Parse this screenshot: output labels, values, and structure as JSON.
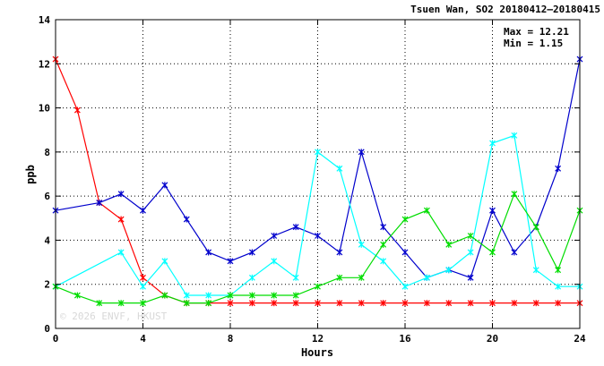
{
  "chart_data": {
    "type": "line",
    "title": "Tsuen Wan, SO2 20180412–20180415",
    "xlabel": "Hours",
    "ylabel": "ppb",
    "xlim": [
      0,
      24
    ],
    "ylim": [
      0,
      14
    ],
    "x_ticks": [
      "0",
      "4",
      "8",
      "12",
      "16",
      "20",
      "24"
    ],
    "y_ticks": [
      "0",
      "2",
      "4",
      "6",
      "8",
      "10",
      "12",
      "14"
    ],
    "grid": true,
    "stats": {
      "max": "Max = 12.21",
      "min": "Min =  1.15"
    },
    "watermark": "© 2026  ENVF, HKUST",
    "series": [
      {
        "color": "#ff0000",
        "x": [
          0,
          1,
          2,
          3,
          4,
          5,
          6,
          7,
          8,
          9,
          10,
          11,
          12,
          13,
          14,
          15,
          16,
          17,
          18,
          19,
          20,
          21,
          22,
          23,
          24
        ],
        "values": [
          12.21,
          9.9,
          5.7,
          4.95,
          2.3,
          1.5,
          1.15,
          1.15,
          1.15,
          1.15,
          1.15,
          1.15,
          1.15,
          1.15,
          1.15,
          1.15,
          1.15,
          1.15,
          1.15,
          1.15,
          1.15,
          1.15,
          1.15,
          1.15,
          1.15
        ]
      },
      {
        "color": "#0000cc",
        "x": [
          0,
          2,
          3,
          4,
          5,
          6,
          7,
          8,
          9,
          10,
          11,
          12,
          13,
          14,
          15,
          16,
          17,
          18,
          19,
          20,
          21,
          22,
          23,
          24
        ],
        "values": [
          5.35,
          5.7,
          6.1,
          5.35,
          6.5,
          4.95,
          3.45,
          3.05,
          3.45,
          4.2,
          4.6,
          4.2,
          3.45,
          8.0,
          4.6,
          3.45,
          2.3,
          2.65,
          2.3,
          5.35,
          3.45,
          4.6,
          7.25,
          12.21
        ]
      },
      {
        "color": "#00ffff",
        "x": [
          0,
          3,
          4,
          5,
          6,
          7,
          8,
          9,
          10,
          11,
          12,
          13,
          14,
          15,
          16,
          17,
          18,
          19,
          20,
          21,
          22,
          23,
          24
        ],
        "values": [
          1.9,
          3.45,
          1.9,
          3.05,
          1.5,
          1.5,
          1.5,
          2.3,
          3.05,
          2.3,
          8.0,
          7.25,
          3.8,
          3.05,
          1.9,
          2.3,
          2.65,
          3.45,
          8.4,
          8.75,
          2.65,
          1.9,
          1.9
        ]
      },
      {
        "color": "#00dd00",
        "x": [
          0,
          1,
          2,
          3,
          4,
          5,
          6,
          7,
          8,
          9,
          10,
          11,
          12,
          13,
          14,
          15,
          16,
          17,
          18,
          19,
          20,
          21,
          22,
          23,
          24
        ],
        "values": [
          1.9,
          1.5,
          1.15,
          1.15,
          1.15,
          1.5,
          1.15,
          1.15,
          1.5,
          1.5,
          1.5,
          1.5,
          1.9,
          2.3,
          2.3,
          3.8,
          4.95,
          5.35,
          3.8,
          4.2,
          3.45,
          6.1,
          4.6,
          2.65,
          5.35
        ]
      }
    ]
  }
}
